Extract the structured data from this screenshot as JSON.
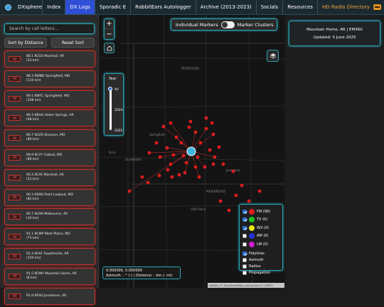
{
  "nav": {
    "brand": "DXsphere",
    "items": [
      "Index",
      "DX Logs",
      "Sporadic E",
      "RabbitEars Autologger",
      "Archive (2013-2023)",
      "Socials",
      "Resources",
      "HD Radio Directory"
    ],
    "active": "DX Logs"
  },
  "sidebar": {
    "search_placeholder": "Search by call letters...",
    "sort_label": "Sort by Distance",
    "reset_label": "Reset Sort",
    "items": [
      {
        "badge": "FM",
        "line1": "88.1 KCGS Marshall, AR",
        "line2": "(53 km)"
      },
      {
        "badge": "FM",
        "line1": "88.3 KWND Springfield, MO",
        "line2": "(110 km)"
      },
      {
        "badge": "FM",
        "line1": "89.1 KWFC Springfield, MO",
        "line2": "(108 km)"
      },
      {
        "badge": "FM",
        "line1": "89.3 KBHU Heber Springs, AR",
        "line2": "(68 km)"
      },
      {
        "badge": "FM",
        "line1": "89.7 KOZO Branson, MO",
        "line2": "(80 km)"
      },
      {
        "badge": "FM",
        "line1": "89.9 KCVY Cabool, MO",
        "line2": "(89 km)"
      },
      {
        "badge": "FM",
        "line1": "90.3 KCAV Marshall, AR",
        "line2": "(52 km)"
      },
      {
        "badge": "FM",
        "line1": "90.3 KSMS Point Lookout, MO",
        "line2": "(82 km)"
      },
      {
        "badge": "FM",
        "line1": "90.7 KLRM Melbourne, AR",
        "line2": "(34 km)"
      },
      {
        "badge": "FM",
        "line1": "91.1 KCWP West Plains, MO",
        "line2": "(73 km)"
      },
      {
        "badge": "FM",
        "line1": "91.3 KUAF Fayetteville, AR",
        "line2": "(150 km)"
      },
      {
        "badge": "FM",
        "line1": "91.5 KCMH Mountain Home, AR",
        "line2": "(8 km)"
      },
      {
        "badge": "FM",
        "line1": "91.9 KRSU Jonesboro, AR",
        "line2": ""
      }
    ]
  },
  "map": {
    "toggle_left": "Individual Markers",
    "toggle_right": "Marker Clusters",
    "year_label": "Year",
    "year_all": "All",
    "year_a": "2024",
    "year_b": "2025",
    "places": {
      "missouri": "MISSOURI",
      "arkansas": "ARKANSAS",
      "springfield": "Springfield",
      "little_rock": "Little Rock",
      "fayetteville": "Fayetteville",
      "jonesboro": "Jonesboro",
      "tulsa": "Tulsa"
    },
    "coords_line1": "0.000000, 0.000000",
    "coords_line2": "Azimuth: - ° (-) | Distance: - km (- mi)",
    "attribution": "Leaflet | © OpenStreetMap contributors © CARTO",
    "legend": [
      {
        "label": "FM (99)",
        "color": "#e01c1c",
        "checked": true
      },
      {
        "label": "TV (0)",
        "color": "#17c41a",
        "checked": true
      },
      {
        "label": "WX (0)",
        "color": "#e8e81a",
        "checked": true
      },
      {
        "label": "AM (0)",
        "color": "#2233dd",
        "checked": false
      },
      {
        "label": "LW (0)",
        "color": "#d01cd0",
        "checked": false
      }
    ],
    "options": [
      {
        "label": "Polylines",
        "checked": true
      },
      {
        "label": "Azimuth",
        "checked": false
      },
      {
        "label": "Radius",
        "checked": false
      },
      {
        "label": "Propagation",
        "checked": false
      }
    ]
  },
  "location": {
    "title": "Mountain Home, AR | EM36tl",
    "updated": "Updated: 5 June 2025"
  },
  "colors": {
    "accent": "#2ba6b6",
    "marker": "#e01c1c",
    "active_nav": "#2f4fd6"
  }
}
